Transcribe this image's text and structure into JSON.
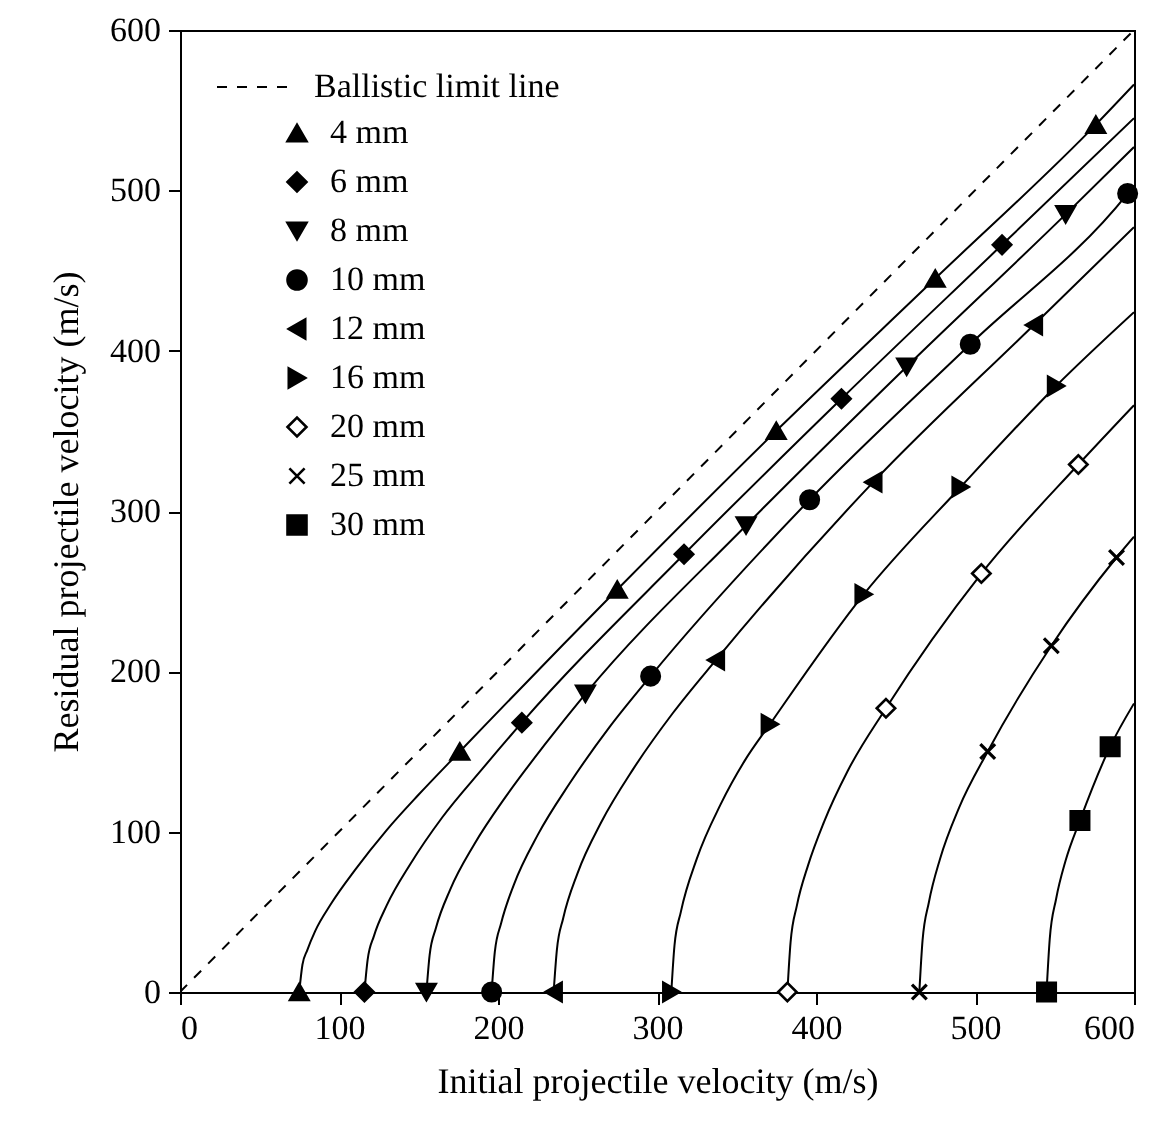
{
  "chart_data": {
    "type": "line",
    "xlabel": "Initial projectile velocity (m/s)",
    "ylabel": "Residual projectile velocity (m/s)",
    "xlim": [
      0,
      600
    ],
    "ylim": [
      0,
      600
    ],
    "xticks": [
      0,
      100,
      200,
      300,
      400,
      500,
      600
    ],
    "yticks": [
      0,
      100,
      200,
      300,
      400,
      500,
      600
    ],
    "grid": false,
    "legend": "top left",
    "series": [
      {
        "name": "Ballistic limit line",
        "color": "#000000",
        "line_style": "dashed",
        "x": [
          0,
          600
        ],
        "values": [
          0,
          600
        ]
      },
      {
        "type": "scatter",
        "name": "4 mm",
        "color": "#000000",
        "marker": "triangle",
        "x": [
          75,
          176,
          275,
          375,
          475,
          576
        ],
        "values": [
          0,
          150,
          251,
          350,
          445,
          541
        ]
      },
      {
        "type": "scatter",
        "name": "6 mm",
        "color": "#000000",
        "marker": "diamond",
        "x": [
          116,
          215,
          317,
          416,
          517
        ],
        "values": [
          0,
          168,
          273,
          370,
          466
        ]
      },
      {
        "type": "scatter",
        "name": "8 mm",
        "color": "#000000",
        "marker": "triangle-down",
        "x": [
          155,
          255,
          356,
          457,
          557
        ],
        "values": [
          0,
          186,
          291,
          390,
          485
        ]
      },
      {
        "type": "scatter",
        "name": "10 mm",
        "color": "#000000",
        "marker": "circle",
        "x": [
          196,
          296,
          396,
          497,
          596
        ],
        "values": [
          0,
          197,
          307,
          404,
          498
        ]
      },
      {
        "type": "scatter",
        "name": "12 mm",
        "color": "#000000",
        "marker": "triangle-left",
        "x": [
          235,
          337,
          436,
          537
        ],
        "values": [
          0,
          207,
          318,
          416
        ]
      },
      {
        "type": "scatter",
        "name": "16 mm",
        "color": "#000000",
        "marker": "triangle-right",
        "x": [
          309,
          371,
          430,
          491,
          551
        ],
        "values": [
          0,
          167,
          248,
          315,
          378
        ]
      },
      {
        "type": "scatter",
        "name": "20 mm",
        "color": "#ffffff",
        "marker": "diamond",
        "x": [
          382,
          444,
          504,
          565
        ],
        "values": [
          0,
          177,
          261,
          329
        ]
      },
      {
        "type": "scatter",
        "name": "25 mm",
        "color": "#000000",
        "marker": "cross",
        "x": [
          465,
          508,
          548,
          589
        ],
        "values": [
          0,
          150,
          216,
          271
        ]
      },
      {
        "type": "scatter",
        "name": "30 mm",
        "color": "#000000",
        "marker": "square",
        "x": [
          545,
          566,
          585
        ],
        "values": [
          0,
          107,
          153
        ]
      },
      {
        "color": "#000000",
        "line_style": "solid",
        "x": [
          75,
          77,
          80,
          85,
          95,
          110,
          130,
          150,
          176,
          275,
          375,
          475,
          576,
          600
        ],
        "values": [
          0,
          17,
          26,
          38,
          55,
          76,
          101,
          123,
          150,
          251,
          350,
          445,
          541,
          566
        ]
      },
      {
        "color": "#000000",
        "line_style": "solid",
        "x": [
          116,
          118,
          122,
          130,
          145,
          165,
          190,
          215,
          317,
          416,
          517,
          600
        ],
        "values": [
          0,
          20,
          35,
          54,
          80,
          109,
          139,
          168,
          273,
          370,
          466,
          545
        ]
      },
      {
        "color": "#000000",
        "line_style": "solid",
        "x": [
          155,
          157,
          161,
          170,
          185,
          205,
          230,
          255,
          356,
          457,
          557,
          600
        ],
        "values": [
          0,
          23,
          40,
          64,
          92,
          122,
          155,
          186,
          291,
          390,
          485,
          527
        ]
      },
      {
        "color": "#000000",
        "line_style": "solid",
        "x": [
          196,
          198,
          202,
          210,
          225,
          245,
          270,
          296,
          396,
          497,
          596,
          600
        ],
        "values": [
          0,
          25,
          43,
          67,
          98,
          130,
          165,
          197,
          307,
          404,
          498,
          503
        ]
      },
      {
        "color": "#000000",
        "line_style": "solid",
        "x": [
          235,
          237,
          241,
          250,
          265,
          285,
          310,
          337,
          436,
          537,
          600
        ],
        "values": [
          0,
          26,
          46,
          74,
          106,
          139,
          174,
          207,
          318,
          416,
          477
        ]
      },
      {
        "color": "#000000",
        "line_style": "solid",
        "x": [
          309,
          311,
          315,
          325,
          340,
          355,
          371,
          430,
          491,
          551,
          600
        ],
        "values": [
          0,
          29,
          50,
          83,
          117,
          144,
          167,
          248,
          315,
          378,
          424
        ]
      },
      {
        "color": "#000000",
        "line_style": "solid",
        "x": [
          382,
          384,
          388,
          395,
          405,
          420,
          444,
          504,
          565,
          600
        ],
        "values": [
          0,
          31,
          54,
          79,
          106,
          138,
          177,
          261,
          329,
          366
        ]
      },
      {
        "color": "#000000",
        "line_style": "solid",
        "x": [
          465,
          467,
          471,
          478,
          490,
          508,
          548,
          589,
          600
        ],
        "values": [
          0,
          32,
          56,
          83,
          115,
          150,
          216,
          271,
          284
        ]
      },
      {
        "color": "#000000",
        "line_style": "solid",
        "x": [
          545,
          547,
          551,
          557,
          566,
          585,
          600
        ],
        "values": [
          0,
          33,
          58,
          82,
          107,
          153,
          180
        ]
      }
    ]
  }
}
